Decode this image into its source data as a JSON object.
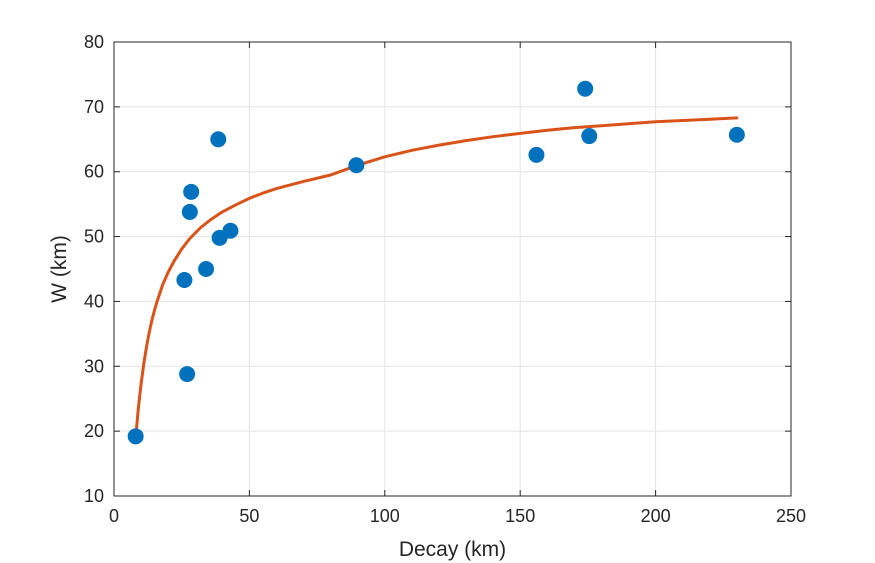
{
  "chart_data": {
    "type": "scatter",
    "title": "",
    "xlabel": "Decay (km)",
    "ylabel": "W (km)",
    "xlim": [
      0,
      250
    ],
    "ylim": [
      10,
      80
    ],
    "xticks": [
      0,
      50,
      100,
      150,
      200,
      250
    ],
    "yticks": [
      10,
      20,
      30,
      40,
      50,
      60,
      70,
      80
    ],
    "grid": true,
    "legend": "none",
    "series": [
      {
        "kind": "scatter",
        "color": "#0072BD",
        "x": [
          8,
          26,
          27,
          28,
          28.5,
          34,
          38.5,
          39,
          43,
          89.5,
          156,
          174,
          175.5,
          230
        ],
        "y": [
          19.2,
          43.3,
          28.8,
          53.8,
          56.9,
          45,
          65,
          49.8,
          50.9,
          61,
          62.6,
          72.8,
          65.5,
          65.7
        ]
      },
      {
        "kind": "line",
        "color": "#D95319",
        "x": [
          8,
          9,
          10,
          11,
          12,
          13,
          14,
          15,
          16,
          18,
          20,
          22,
          25,
          28,
          32,
          36,
          40,
          45,
          50,
          55,
          60,
          70,
          80,
          90,
          100,
          110,
          120,
          130,
          140,
          150,
          160,
          170,
          180,
          190,
          200,
          210,
          220,
          230
        ],
        "y": [
          19,
          23.6,
          27.3,
          30.4,
          33,
          35.2,
          37.1,
          38.7,
          40.1,
          42.6,
          44.5,
          46.1,
          48.1,
          49.7,
          51.4,
          52.7,
          53.8,
          54.9,
          55.9,
          56.7,
          57.4,
          58.5,
          59.5,
          61,
          62.3,
          63.3,
          64.1,
          64.8,
          65.4,
          65.9,
          66.4,
          66.8,
          67.1,
          67.4,
          67.7,
          67.9,
          68.1,
          68.3
        ]
      }
    ]
  }
}
